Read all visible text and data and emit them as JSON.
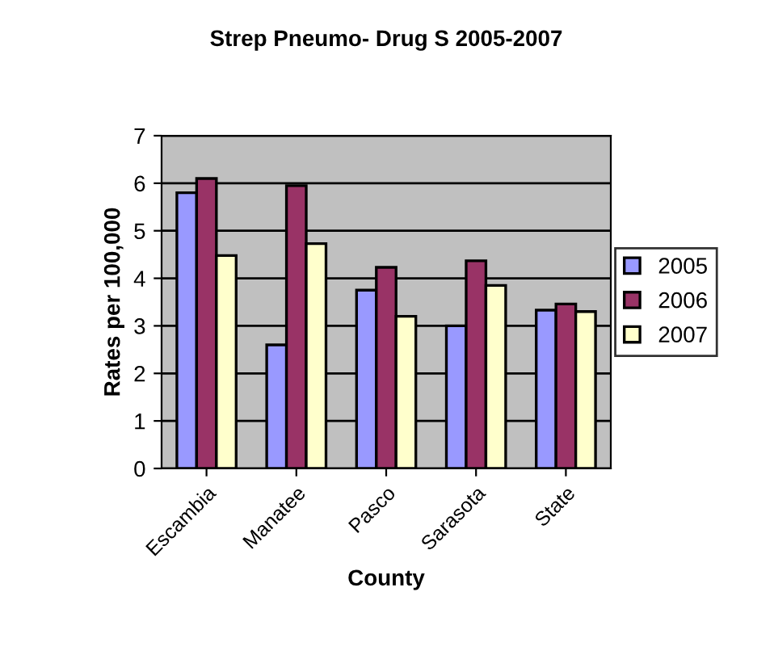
{
  "chart_data": {
    "type": "bar",
    "title": "Strep Pneumo- Drug S 2005-2007",
    "xlabel": "County",
    "ylabel": "Rates per 100,000",
    "categories": [
      "Escambia",
      "Manatee",
      "Pasco",
      "Sarasota",
      "State"
    ],
    "series": [
      {
        "name": "2005",
        "color": "#9999ff",
        "values": [
          5.8,
          2.6,
          3.75,
          3.0,
          3.33
        ]
      },
      {
        "name": "2006",
        "color": "#993366",
        "values": [
          6.1,
          5.95,
          4.23,
          4.37,
          3.46
        ]
      },
      {
        "name": "2007",
        "color": "#ffffcc",
        "values": [
          4.48,
          4.73,
          3.2,
          3.85,
          3.3
        ]
      }
    ],
    "ylim": [
      0,
      7
    ],
    "yticks": [
      0,
      1,
      2,
      3,
      4,
      5,
      6,
      7
    ],
    "grid": "y",
    "legend": "right"
  }
}
